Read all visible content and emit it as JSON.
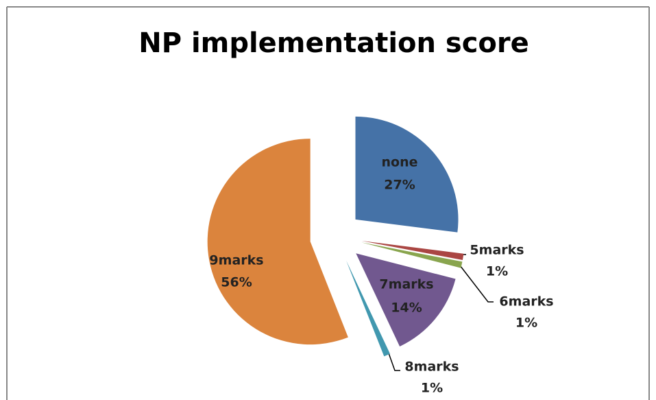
{
  "chart_data": {
    "type": "pie",
    "title": "NP implementation score",
    "categories": [
      "none",
      "5marks",
      "6marks",
      "7marks",
      "8marks",
      "9marks"
    ],
    "values": [
      27,
      1,
      1,
      14,
      1,
      56
    ],
    "value_labels": [
      "27%",
      "1%",
      "1%",
      "14%",
      "1%",
      "56%"
    ],
    "colors": [
      "#4572a7",
      "#aa4643",
      "#89a54e",
      "#71588f",
      "#4198af",
      "#db843d"
    ]
  }
}
